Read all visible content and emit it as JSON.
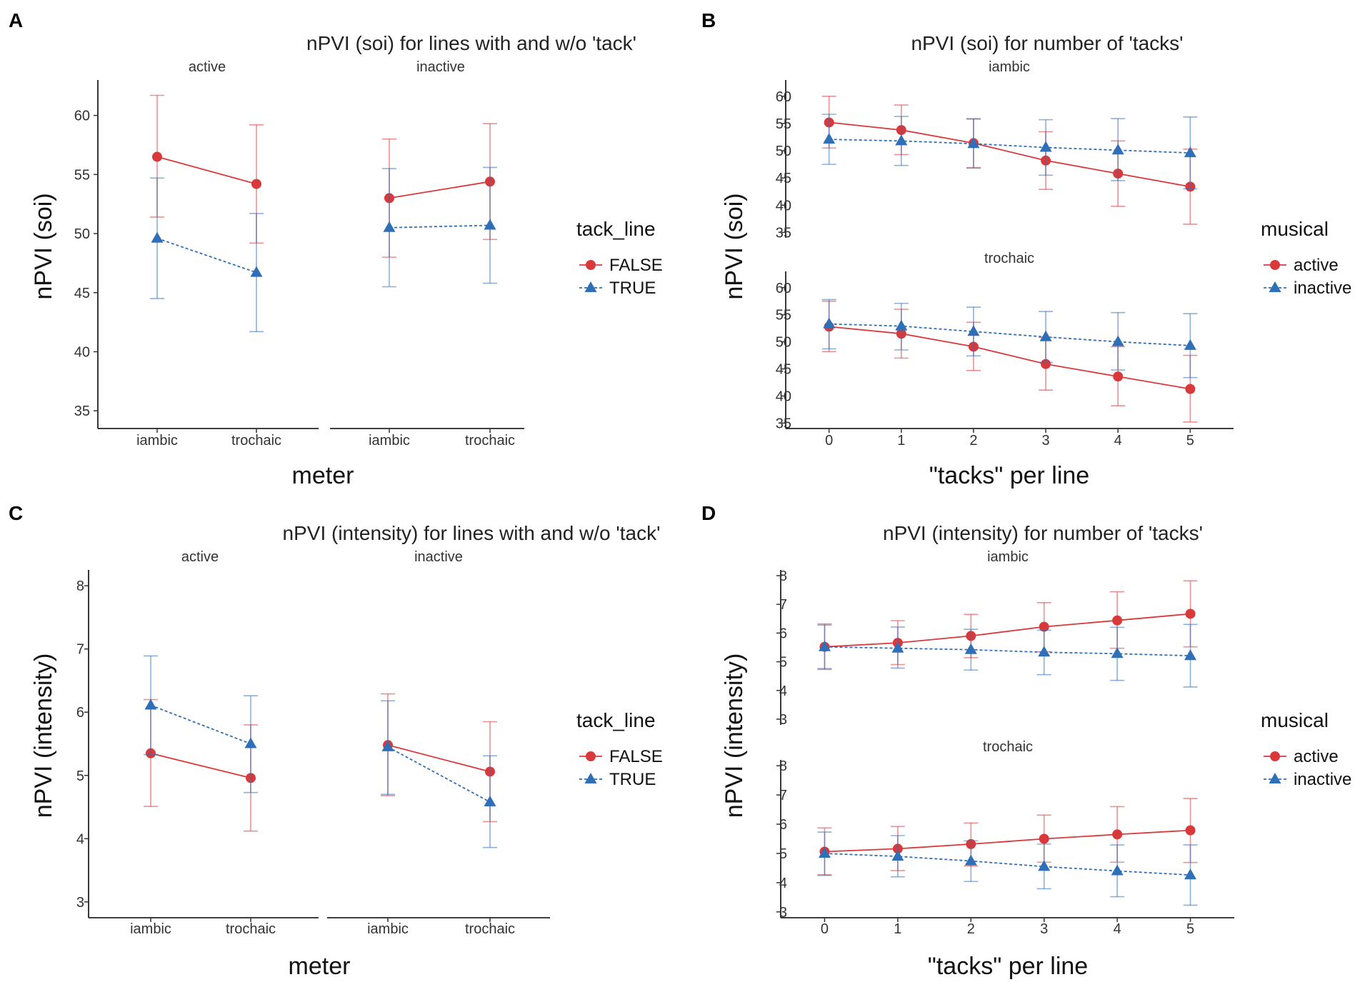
{
  "colors": {
    "active": "#d9393b",
    "inactive": "#2f6fb8"
  },
  "chart_data": [
    {
      "id": "A",
      "label": "A",
      "type": "line",
      "title": "nPVI (soi) for lines with and w/o 'tack'",
      "xlabel": "meter",
      "ylabel": "nPVI (soi)",
      "ylim": [
        33.5,
        63
      ],
      "yticks": [
        35,
        40,
        45,
        50,
        55,
        60
      ],
      "categories": [
        "iambic",
        "trochaic"
      ],
      "legend": {
        "title": "tack_line",
        "entries": [
          "FALSE",
          "TRUE"
        ]
      },
      "facets": [
        {
          "name": "active",
          "series": [
            {
              "name": "FALSE",
              "style": "active",
              "values": [
                56.5,
                54.2
              ],
              "lower": [
                51.4,
                49.2
              ],
              "upper": [
                61.7,
                59.2
              ]
            },
            {
              "name": "TRUE",
              "style": "inactive",
              "values": [
                49.6,
                46.7
              ],
              "lower": [
                44.5,
                41.7
              ],
              "upper": [
                54.7,
                51.7
              ]
            }
          ]
        },
        {
          "name": "inactive",
          "series": [
            {
              "name": "FALSE",
              "style": "active",
              "values": [
                53.0,
                54.4
              ],
              "lower": [
                48.0,
                49.5
              ],
              "upper": [
                58.0,
                59.3
              ]
            },
            {
              "name": "TRUE",
              "style": "inactive",
              "values": [
                50.5,
                50.7
              ],
              "lower": [
                45.5,
                45.8
              ],
              "upper": [
                55.5,
                55.6
              ]
            }
          ]
        }
      ]
    },
    {
      "id": "B",
      "label": "B",
      "type": "line",
      "title": "nPVI (soi) for number of 'tacks'",
      "xlabel": "\"tacks\" per line",
      "ylabel": "nPVI (soi)",
      "ylim": [
        34,
        63
      ],
      "yticks": [
        35,
        40,
        45,
        50,
        55,
        60
      ],
      "x": [
        0,
        1,
        2,
        3,
        4,
        5
      ],
      "legend": {
        "title": "musical",
        "entries": [
          "active",
          "inactive"
        ]
      },
      "facets": [
        {
          "name": "iambic",
          "series": [
            {
              "name": "active",
              "style": "active",
              "values": [
                55.2,
                53.8,
                51.4,
                48.2,
                45.8,
                43.4
              ],
              "lower": [
                50.5,
                49.3,
                46.9,
                42.9,
                39.8,
                36.5
              ],
              "upper": [
                60.0,
                58.4,
                55.9,
                53.5,
                51.8,
                50.3
              ]
            },
            {
              "name": "inactive",
              "style": "inactive",
              "values": [
                52.1,
                51.8,
                51.3,
                50.6,
                50.1,
                49.6
              ],
              "lower": [
                47.5,
                47.3,
                46.8,
                45.5,
                44.5,
                43.0
              ],
              "upper": [
                56.7,
                56.3,
                55.8,
                55.7,
                55.9,
                56.2
              ]
            }
          ]
        },
        {
          "name": "trochaic",
          "series": [
            {
              "name": "active",
              "style": "active",
              "values": [
                52.8,
                51.5,
                49.1,
                45.9,
                43.6,
                41.3
              ],
              "lower": [
                48.2,
                47.0,
                44.7,
                41.1,
                38.2,
                35.2
              ],
              "upper": [
                57.5,
                56.0,
                53.6,
                50.8,
                49.1,
                47.5
              ]
            },
            {
              "name": "inactive",
              "style": "inactive",
              "values": [
                53.3,
                52.9,
                51.9,
                50.9,
                50.0,
                49.3
              ],
              "lower": [
                48.7,
                48.5,
                47.4,
                46.2,
                44.8,
                43.4
              ],
              "upper": [
                57.8,
                57.1,
                56.4,
                55.6,
                55.4,
                55.2
              ]
            }
          ]
        }
      ]
    },
    {
      "id": "C",
      "label": "C",
      "type": "line",
      "title": "nPVI (intensity) for lines with and w/o 'tack'",
      "xlabel": "meter",
      "ylabel": "nPVI (intensity)",
      "ylim": [
        2.75,
        8.25
      ],
      "yticks": [
        3,
        4,
        5,
        6,
        7,
        8
      ],
      "categories": [
        "iambic",
        "trochaic"
      ],
      "legend": {
        "title": "tack_line",
        "entries": [
          "FALSE",
          "TRUE"
        ]
      },
      "facets": [
        {
          "name": "active",
          "series": [
            {
              "name": "FALSE",
              "style": "active",
              "values": [
                5.35,
                4.96
              ],
              "lower": [
                4.51,
                4.12
              ],
              "upper": [
                6.2,
                5.8
              ]
            },
            {
              "name": "TRUE",
              "style": "inactive",
              "values": [
                6.11,
                5.5
              ],
              "lower": [
                5.33,
                4.73
              ],
              "upper": [
                6.89,
                6.26
              ]
            }
          ]
        },
        {
          "name": "inactive",
          "series": [
            {
              "name": "FALSE",
              "style": "active",
              "values": [
                5.48,
                5.06
              ],
              "lower": [
                4.68,
                4.27
              ],
              "upper": [
                6.29,
                5.85
              ]
            },
            {
              "name": "TRUE",
              "style": "inactive",
              "values": [
                5.45,
                4.58
              ],
              "lower": [
                4.7,
                3.86
              ],
              "upper": [
                6.18,
                5.31
              ]
            }
          ]
        }
      ]
    },
    {
      "id": "D",
      "label": "D",
      "type": "line",
      "title": "nPVI (intensity) for number of 'tacks'",
      "xlabel": "\"tacks\" per line",
      "ylabel": "nPVI (intensity)",
      "ylim": [
        2.8,
        8.2
      ],
      "yticks": [
        3,
        4,
        5,
        6,
        7,
        8
      ],
      "x": [
        0,
        1,
        2,
        3,
        4,
        5
      ],
      "legend": {
        "title": "musical",
        "entries": [
          "active",
          "inactive"
        ]
      },
      "facets": [
        {
          "name": "iambic",
          "series": [
            {
              "name": "active",
              "style": "active",
              "values": [
                5.52,
                5.66,
                5.9,
                6.22,
                6.44,
                6.67
              ],
              "lower": [
                4.73,
                4.9,
                5.14,
                5.35,
                5.47,
                5.52
              ],
              "upper": [
                6.32,
                6.43,
                6.65,
                7.06,
                7.44,
                7.82
              ]
            },
            {
              "name": "inactive",
              "style": "inactive",
              "values": [
                5.52,
                5.47,
                5.42,
                5.33,
                5.28,
                5.21
              ],
              "lower": [
                4.76,
                4.78,
                4.71,
                4.55,
                4.35,
                4.12
              ],
              "upper": [
                6.28,
                6.21,
                6.13,
                6.1,
                6.2,
                6.3
              ]
            }
          ]
        },
        {
          "name": "trochaic",
          "series": [
            {
              "name": "active",
              "style": "active",
              "values": [
                5.06,
                5.16,
                5.32,
                5.5,
                5.65,
                5.79
              ],
              "lower": [
                4.27,
                4.41,
                4.57,
                4.7,
                4.7,
                4.69
              ],
              "upper": [
                5.87,
                5.92,
                6.04,
                6.31,
                6.6,
                6.88
              ]
            },
            {
              "name": "inactive",
              "style": "inactive",
              "values": [
                5.0,
                4.9,
                4.74,
                4.55,
                4.4,
                4.26
              ],
              "lower": [
                4.25,
                4.2,
                4.04,
                3.79,
                3.52,
                3.23
              ],
              "upper": [
                5.73,
                5.61,
                5.43,
                5.32,
                5.29,
                5.29
              ]
            }
          ]
        }
      ]
    }
  ]
}
